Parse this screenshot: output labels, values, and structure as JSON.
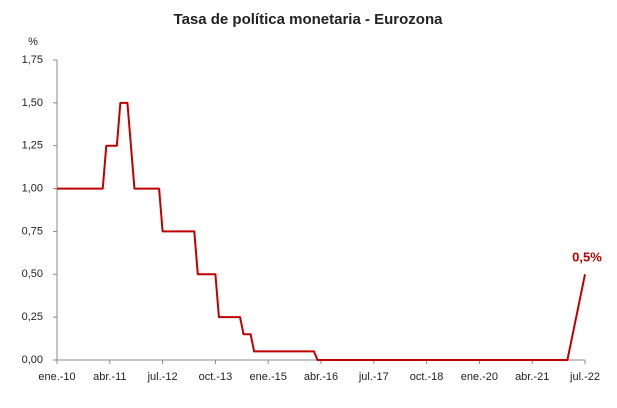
{
  "chart_data": {
    "type": "line",
    "title": "Tasa de política monetaria - Eurozona",
    "y_label": "%",
    "categories": [
      "ene.-10",
      null,
      null,
      null,
      null,
      null,
      null,
      null,
      null,
      null,
      null,
      null,
      null,
      null,
      null,
      "abr.-11",
      null,
      null,
      null,
      null,
      null,
      null,
      null,
      null,
      null,
      null,
      null,
      null,
      null,
      null,
      "jul.-12",
      null,
      null,
      null,
      null,
      null,
      null,
      null,
      null,
      null,
      null,
      null,
      null,
      null,
      null,
      "oct.-13",
      null,
      null,
      null,
      null,
      null,
      null,
      null,
      null,
      null,
      null,
      null,
      null,
      null,
      null,
      "ene.-15",
      null,
      null,
      null,
      null,
      null,
      null,
      null,
      null,
      null,
      null,
      null,
      null,
      null,
      null,
      "abr.-16",
      null,
      null,
      null,
      null,
      null,
      null,
      null,
      null,
      null,
      null,
      null,
      null,
      null,
      null,
      "jul.-17",
      null,
      null,
      null,
      null,
      null,
      null,
      null,
      null,
      null,
      null,
      null,
      null,
      null,
      null,
      "oct.-18",
      null,
      null,
      null,
      null,
      null,
      null,
      null,
      null,
      null,
      null,
      null,
      null,
      null,
      null,
      "ene.-20",
      null,
      null,
      null,
      null,
      null,
      null,
      null,
      null,
      null,
      null,
      null,
      null,
      null,
      null,
      "abr.-21",
      null,
      null,
      null,
      null,
      null,
      null,
      null,
      null,
      null,
      null,
      null,
      null,
      null,
      null,
      "jul.-22"
    ],
    "values": [
      1,
      1,
      1,
      1,
      1,
      1,
      1,
      1,
      1,
      1,
      1,
      1,
      1,
      1,
      1.25,
      1.25,
      1.25,
      1.25,
      1.5,
      1.5,
      1.5,
      1.25,
      1,
      1,
      1,
      1,
      1,
      1,
      1,
      1,
      0.75,
      0.75,
      0.75,
      0.75,
      0.75,
      0.75,
      0.75,
      0.75,
      0.75,
      0.75,
      0.5,
      0.5,
      0.5,
      0.5,
      0.5,
      0.5,
      0.25,
      0.25,
      0.25,
      0.25,
      0.25,
      0.25,
      0.25,
      0.15,
      0.15,
      0.15,
      0.05,
      0.05,
      0.05,
      0.05,
      0.05,
      0.05,
      0.05,
      0.05,
      0.05,
      0.05,
      0.05,
      0.05,
      0.05,
      0.05,
      0.05,
      0.05,
      0.05,
      0.05,
      0,
      0,
      0,
      0,
      0,
      0,
      0,
      0,
      0,
      0,
      0,
      0,
      0,
      0,
      0,
      0,
      0,
      0,
      0,
      0,
      0,
      0,
      0,
      0,
      0,
      0,
      0,
      0,
      0,
      0,
      0,
      0,
      0,
      0,
      0,
      0,
      0,
      0,
      0,
      0,
      0,
      0,
      0,
      0,
      0,
      0,
      0,
      0,
      0,
      0,
      0,
      0,
      0,
      0,
      0,
      0,
      0,
      0,
      0,
      0,
      0,
      0,
      0,
      0,
      0,
      0,
      0,
      0,
      0,
      0,
      0,
      0,
      0.1,
      0.2,
      0.3,
      0.4,
      0.5
    ],
    "value_labels": [
      null,
      null,
      null,
      null,
      null,
      null,
      null,
      null,
      null,
      null,
      null,
      null,
      null,
      null,
      null,
      null,
      null,
      null,
      null,
      null,
      null,
      null,
      null,
      null,
      null,
      null,
      null,
      null,
      null,
      null,
      null,
      null,
      null,
      null,
      null,
      null,
      null,
      null,
      null,
      null,
      null,
      null,
      null,
      null,
      null,
      null,
      null,
      null,
      null,
      null,
      null,
      null,
      null,
      null,
      null,
      null,
      null,
      null,
      null,
      null,
      null,
      null,
      null,
      null,
      null,
      null,
      null,
      null,
      null,
      null,
      null,
      null,
      null,
      null,
      null,
      null,
      null,
      null,
      null,
      null,
      null,
      null,
      null,
      null,
      null,
      null,
      null,
      null,
      null,
      null,
      null,
      null,
      null,
      null,
      null,
      null,
      null,
      null,
      null,
      null,
      null,
      null,
      null,
      null,
      null,
      null,
      null,
      null,
      null,
      null,
      null,
      null,
      null,
      null,
      null,
      null,
      null,
      null,
      null,
      null,
      null,
      null,
      null,
      null,
      null,
      null,
      null,
      null,
      null,
      null,
      null,
      null,
      null,
      null,
      null,
      null,
      null,
      null,
      null,
      null,
      null,
      null,
      null,
      null,
      null,
      null,
      null,
      null,
      null,
      null,
      "0,5%"
    ],
    "color": "#c00000",
    "ylim": [
      0,
      1.75
    ],
    "yticks": [
      {
        "value": 0,
        "label": "0,00"
      },
      {
        "value": 0.25,
        "label": "0,25"
      },
      {
        "value": 0.5,
        "label": "0,50"
      },
      {
        "value": 0.75,
        "label": "0,75"
      },
      {
        "value": 1,
        "label": "1,00"
      },
      {
        "value": 1.25,
        "label": "1,25"
      },
      {
        "value": 1.5,
        "label": "1,50"
      },
      {
        "value": 1.75,
        "label": "1,75"
      }
    ],
    "grid": false
  }
}
